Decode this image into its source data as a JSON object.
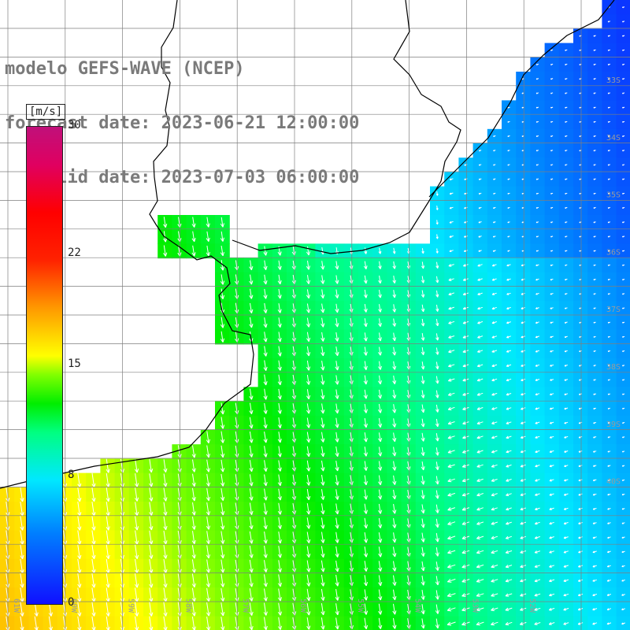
{
  "title": {
    "line1": "modelo GEFS-WAVE (NCEP)",
    "line2": "forecast date: 2023-06-21 12:00:00",
    "line3": "   valid date: 2023-07-03 06:00:00"
  },
  "colorbar": {
    "unit": "[m/s]",
    "ticks": [
      {
        "value": 30,
        "label": "30"
      },
      {
        "value": 22,
        "label": "22"
      },
      {
        "value": 15,
        "label": "15"
      },
      {
        "value": 8,
        "label": "8"
      },
      {
        "value": 0,
        "label": "0"
      }
    ],
    "min": 0,
    "max": 30
  },
  "grid": {
    "lat_labels": [
      "33S",
      "34S",
      "35S",
      "36S",
      "37S",
      "38S",
      "39S",
      "40S"
    ],
    "lon_labels": [
      "61W",
      "60W",
      "59W",
      "58W",
      "57W",
      "56W",
      "55W",
      "54W",
      "53W",
      "52W"
    ]
  },
  "colors": {
    "land": "#ffffff",
    "coast": "#000000",
    "grid": "#7f7f7f",
    "arrow": "#ffffff"
  }
}
